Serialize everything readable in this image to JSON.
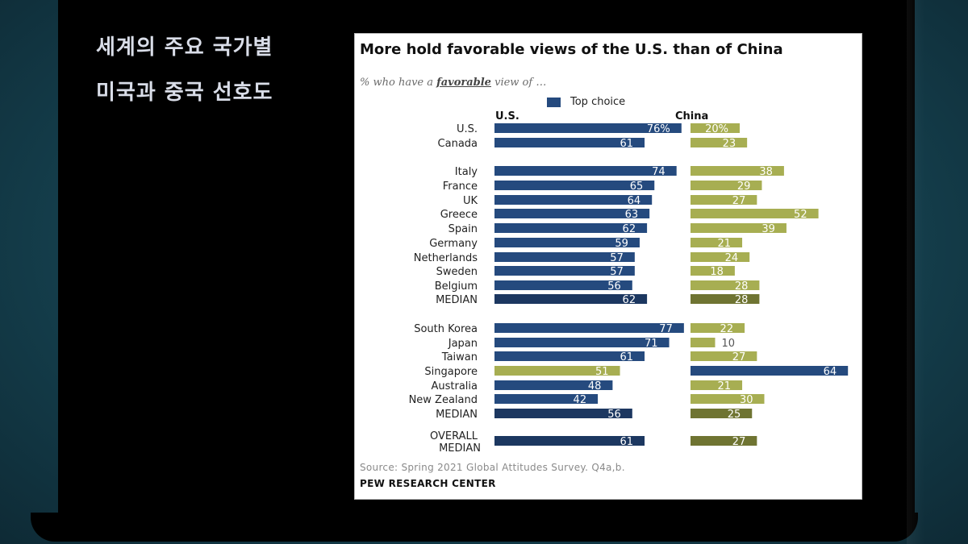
{
  "slide": {
    "title_line1": "세계의 주요 국가별",
    "title_line2": "미국과 중국 선호도"
  },
  "colors": {
    "us_bar": "#254a7e",
    "china_bar": "#a7ae52",
    "median_us": "#1c3760",
    "median_china": "#6f7432",
    "singapore_us": "#a7ae52",
    "singapore_china": "#254a7e"
  },
  "chart_data": {
    "type": "bar",
    "title": "More hold favorable views of the U.S. than of China",
    "subtitle_prefix": "% who have a",
    "subtitle_emphasis": "favorable",
    "subtitle_suffix": "view of …",
    "legend": "Top choice",
    "column_headers": [
      "U.S.",
      "China"
    ],
    "series": [
      {
        "name": "U.S.",
        "values": [
          76,
          61,
          74,
          65,
          64,
          63,
          62,
          59,
          57,
          57,
          56,
          62,
          77,
          71,
          61,
          51,
          48,
          42,
          56,
          61
        ]
      },
      {
        "name": "China",
        "values": [
          20,
          23,
          38,
          29,
          27,
          52,
          39,
          21,
          24,
          18,
          28,
          28,
          22,
          10,
          27,
          64,
          21,
          30,
          25,
          27
        ]
      }
    ],
    "rows": [
      {
        "label": "U.S.",
        "us": "76%",
        "china": "20%",
        "us_val": 76,
        "china_val": 20,
        "kind": "normal"
      },
      {
        "label": "Canada",
        "us": "61",
        "china": "23",
        "us_val": 61,
        "china_val": 23,
        "kind": "normal"
      },
      {
        "label": "Italy",
        "us": "74",
        "china": "38",
        "us_val": 74,
        "china_val": 38,
        "kind": "normal"
      },
      {
        "label": "France",
        "us": "65",
        "china": "29",
        "us_val": 65,
        "china_val": 29,
        "kind": "normal"
      },
      {
        "label": "UK",
        "us": "64",
        "china": "27",
        "us_val": 64,
        "china_val": 27,
        "kind": "normal"
      },
      {
        "label": "Greece",
        "us": "63",
        "china": "52",
        "us_val": 63,
        "china_val": 52,
        "kind": "normal"
      },
      {
        "label": "Spain",
        "us": "62",
        "china": "39",
        "us_val": 62,
        "china_val": 39,
        "kind": "normal"
      },
      {
        "label": "Germany",
        "us": "59",
        "china": "21",
        "us_val": 59,
        "china_val": 21,
        "kind": "normal"
      },
      {
        "label": "Netherlands",
        "us": "57",
        "china": "24",
        "us_val": 57,
        "china_val": 24,
        "kind": "normal"
      },
      {
        "label": "Sweden",
        "us": "57",
        "china": "18",
        "us_val": 57,
        "china_val": 18,
        "kind": "normal"
      },
      {
        "label": "Belgium",
        "us": "56",
        "china": "28",
        "us_val": 56,
        "china_val": 28,
        "kind": "normal"
      },
      {
        "label": "MEDIAN",
        "us": "62",
        "china": "28",
        "us_val": 62,
        "china_val": 28,
        "kind": "median"
      },
      {
        "label": "South Korea",
        "us": "77",
        "china": "22",
        "us_val": 77,
        "china_val": 22,
        "kind": "normal"
      },
      {
        "label": "Japan",
        "us": "71",
        "china": "10",
        "us_val": 71,
        "china_val": 10,
        "kind": "normal"
      },
      {
        "label": "Taiwan",
        "us": "61",
        "china": "27",
        "us_val": 61,
        "china_val": 27,
        "kind": "normal"
      },
      {
        "label": "Singapore",
        "us": "51",
        "china": "64",
        "us_val": 51,
        "china_val": 64,
        "kind": "china_top"
      },
      {
        "label": "Australia",
        "us": "48",
        "china": "21",
        "us_val": 48,
        "china_val": 21,
        "kind": "normal"
      },
      {
        "label": "New Zealand",
        "us": "42",
        "china": "30",
        "us_val": 42,
        "china_val": 30,
        "kind": "normal"
      },
      {
        "label": "MEDIAN",
        "us": "56",
        "china": "25",
        "us_val": 56,
        "china_val": 25,
        "kind": "median"
      },
      {
        "label": "OVERALL MEDIAN",
        "label_line1": "OVERALL",
        "label_line2": "MEDIAN",
        "us": "61",
        "china": "27",
        "us_val": 61,
        "china_val": 27,
        "kind": "overall"
      }
    ],
    "source": "Source: Spring 2021 Global Attitudes Survey. Q4a,b.",
    "brand": "PEW RESEARCH CENTER"
  }
}
